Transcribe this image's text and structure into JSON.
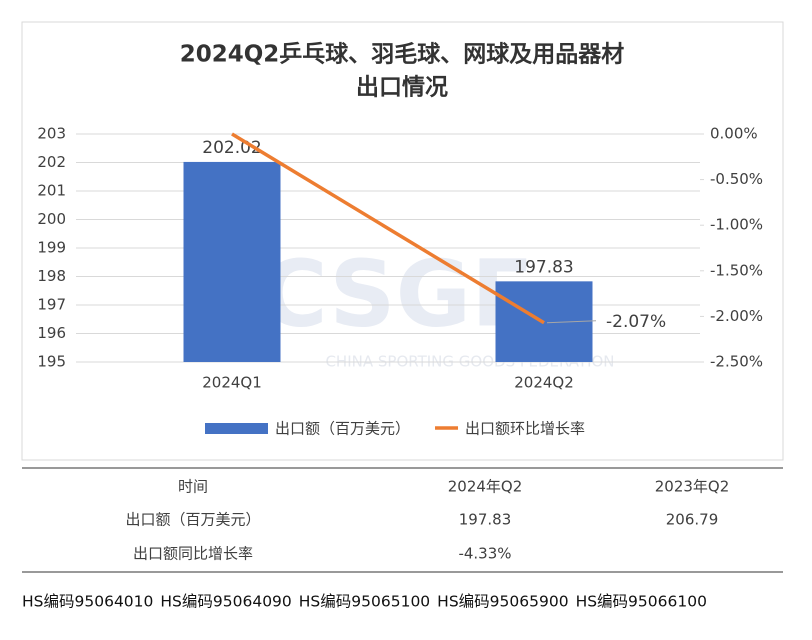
{
  "chart_data": {
    "type": "combo",
    "title": "2024Q2乒乓球、羽毛球、网球及用品器材",
    "subtitle": "出口情况",
    "watermark": "CSGF",
    "watermark_caption": "CHINA SPORTING GOODS FEDERATION",
    "categories": [
      "2024Q1",
      "2024Q2"
    ],
    "series": [
      {
        "name": "出口额（百万美元）",
        "type": "bar",
        "color": "#4472c4",
        "values": [
          202.02,
          197.83
        ]
      },
      {
        "name": "出口额环比增长率",
        "type": "line",
        "axis": "y2",
        "color": "#ed7d31",
        "values": [
          0,
          -2.07
        ],
        "value_labels": [
          null,
          "-2.07%"
        ]
      }
    ],
    "ylim": [
      195,
      203
    ],
    "yticks": [
      195,
      196,
      197,
      198,
      199,
      200,
      201,
      202,
      203
    ],
    "y2lim": [
      -2.5,
      0
    ],
    "y2ticks": [
      {
        "value": 0,
        "label": "0.00%"
      },
      {
        "value": -0.5,
        "label": "-0.50%"
      },
      {
        "value": -1,
        "label": "-1.00%"
      },
      {
        "value": -1.5,
        "label": "-1.50%"
      },
      {
        "value": -2,
        "label": "-2.00%"
      },
      {
        "value": -2.5,
        "label": "-2.50%"
      }
    ],
    "grid": true,
    "legend": "bottom"
  },
  "table": {
    "header": [
      "时间",
      "2024年Q2",
      "2023年Q2"
    ],
    "rows": [
      [
        "出口额（百万美元）",
        "197.83",
        "206.79"
      ],
      [
        "出口额同比增长率",
        "-4.33%",
        null
      ]
    ]
  },
  "footer": {
    "codes": [
      "HS编码95064010",
      "HS编码95064090",
      "HS编码95065100",
      "HS编码95065900",
      "HS编码95066100"
    ]
  }
}
